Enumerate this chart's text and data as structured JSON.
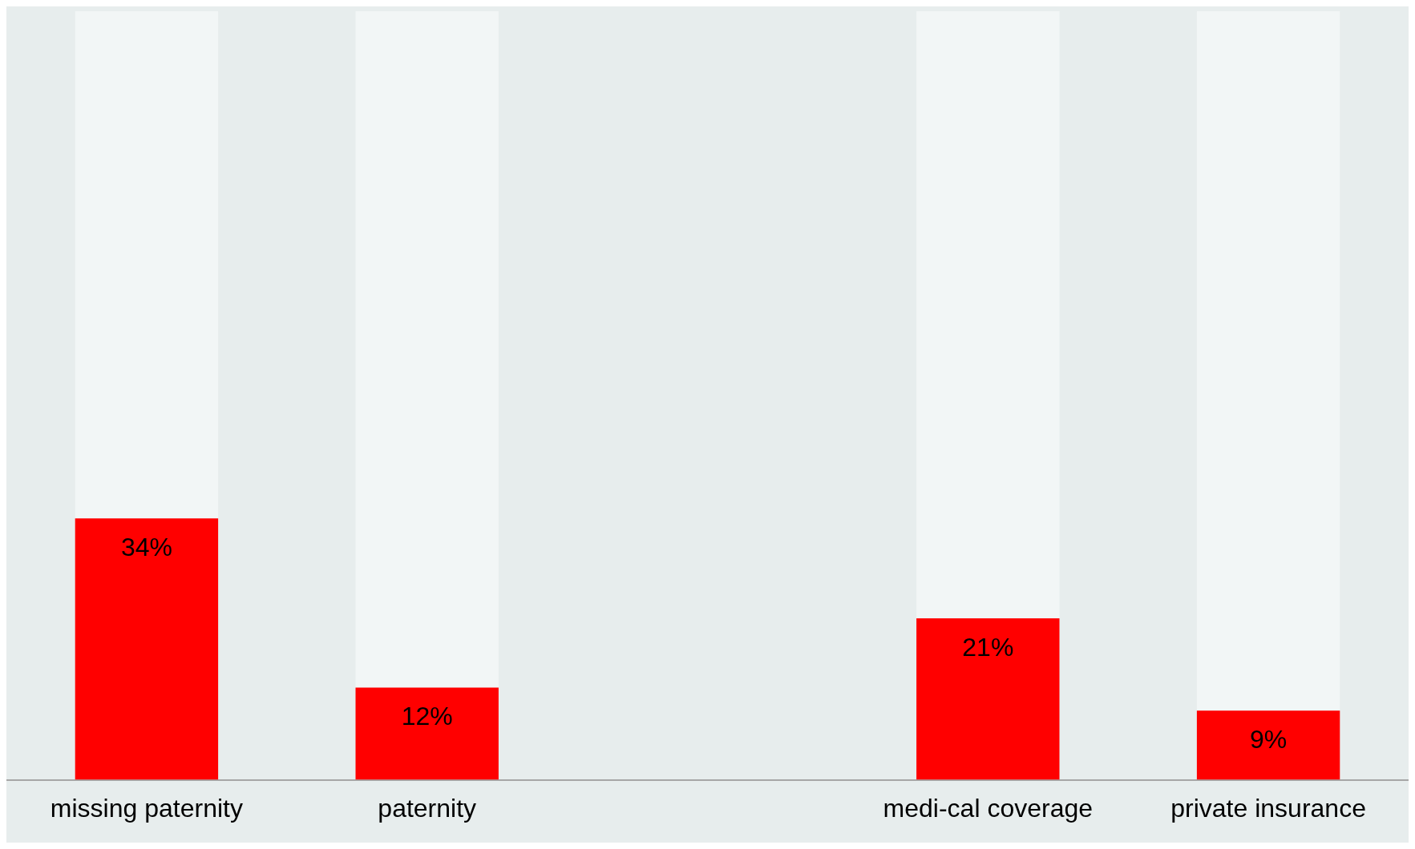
{
  "chart_data": {
    "type": "bar",
    "categories": [
      "missing paternity",
      "paternity",
      null,
      "medi-cal coverage",
      "private insurance"
    ],
    "stacked": true,
    "ylim": [
      0,
      100
    ],
    "tick_labels": "x",
    "grid": false,
    "legend": false,
    "series": [
      {
        "color": "#ff0000",
        "values": [
          34,
          12,
          null,
          21,
          9
        ],
        "value_labels": [
          "34%",
          "12%",
          null,
          "21%",
          "9%"
        ]
      },
      {
        "color": "#f2f6f6",
        "values": [
          66,
          88,
          null,
          79,
          91
        ]
      }
    ]
  }
}
